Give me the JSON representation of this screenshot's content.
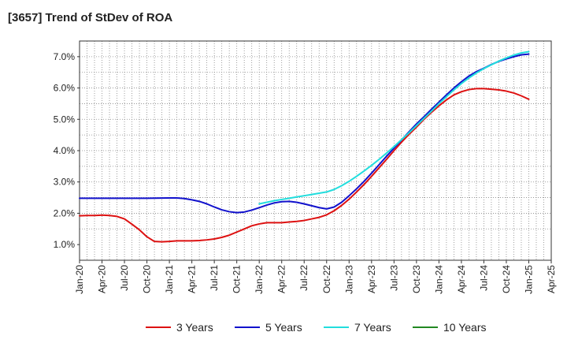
{
  "title": "[3657]  Trend of StDev of ROA",
  "chart_data": {
    "type": "line",
    "title": "[3657]  Trend of StDev of ROA",
    "xlabel": "",
    "ylabel": "",
    "x_tick_labels": [
      "Jan-20",
      "Apr-20",
      "Jul-20",
      "Oct-20",
      "Jan-21",
      "Apr-21",
      "Jul-21",
      "Oct-21",
      "Jan-22",
      "Apr-22",
      "Jul-22",
      "Oct-22",
      "Jan-23",
      "Apr-23",
      "Jul-23",
      "Oct-23",
      "Jan-24",
      "Apr-24",
      "Jul-24",
      "Oct-24",
      "Jan-25",
      "Apr-25"
    ],
    "y_tick_labels": [
      "1.0%",
      "2.0%",
      "3.0%",
      "4.0%",
      "5.0%",
      "6.0%",
      "7.0%"
    ],
    "y_ticks": [
      1.0,
      2.0,
      3.0,
      4.0,
      5.0,
      6.0,
      7.0
    ],
    "ylim": [
      0.5,
      7.5
    ],
    "grid": true,
    "legend_position": "bottom",
    "series": [
      {
        "name": "3 Years",
        "color": "#dd1111",
        "points": [
          [
            "Jan-20",
            1.92
          ],
          [
            "Feb-20",
            1.93
          ],
          [
            "Mar-20",
            1.93
          ],
          [
            "Apr-20",
            1.94
          ],
          [
            "May-20",
            1.93
          ],
          [
            "Jun-20",
            1.9
          ],
          [
            "Jul-20",
            1.82
          ],
          [
            "Aug-20",
            1.65
          ],
          [
            "Sep-20",
            1.47
          ],
          [
            "Oct-20",
            1.25
          ],
          [
            "Nov-20",
            1.1
          ],
          [
            "Dec-20",
            1.09
          ],
          [
            "Jan-21",
            1.1
          ],
          [
            "Feb-21",
            1.12
          ],
          [
            "Mar-21",
            1.12
          ],
          [
            "Apr-21",
            1.12
          ],
          [
            "May-21",
            1.13
          ],
          [
            "Jun-21",
            1.15
          ],
          [
            "Jul-21",
            1.18
          ],
          [
            "Aug-21",
            1.23
          ],
          [
            "Sep-21",
            1.3
          ],
          [
            "Oct-21",
            1.4
          ],
          [
            "Nov-21",
            1.5
          ],
          [
            "Dec-21",
            1.6
          ],
          [
            "Jan-22",
            1.66
          ],
          [
            "Feb-22",
            1.7
          ],
          [
            "Mar-22",
            1.7
          ],
          [
            "Apr-22",
            1.7
          ],
          [
            "May-22",
            1.72
          ],
          [
            "Jun-22",
            1.74
          ],
          [
            "Jul-22",
            1.77
          ],
          [
            "Aug-22",
            1.82
          ],
          [
            "Sep-22",
            1.87
          ],
          [
            "Oct-22",
            1.95
          ],
          [
            "Nov-22",
            2.08
          ],
          [
            "Dec-22",
            2.25
          ],
          [
            "Jan-23",
            2.45
          ],
          [
            "Feb-23",
            2.68
          ],
          [
            "Mar-23",
            2.92
          ],
          [
            "Apr-23",
            3.18
          ],
          [
            "May-23",
            3.45
          ],
          [
            "Jun-23",
            3.72
          ],
          [
            "Jul-23",
            4.0
          ],
          [
            "Aug-23",
            4.27
          ],
          [
            "Sep-23",
            4.52
          ],
          [
            "Oct-23",
            4.75
          ],
          [
            "Nov-23",
            5.0
          ],
          [
            "Dec-23",
            5.22
          ],
          [
            "Jan-24",
            5.43
          ],
          [
            "Feb-24",
            5.62
          ],
          [
            "Mar-24",
            5.78
          ],
          [
            "Apr-24",
            5.88
          ],
          [
            "May-24",
            5.95
          ],
          [
            "Jun-24",
            5.98
          ],
          [
            "Jul-24",
            5.98
          ],
          [
            "Aug-24",
            5.96
          ],
          [
            "Sep-24",
            5.94
          ],
          [
            "Oct-24",
            5.9
          ],
          [
            "Nov-24",
            5.84
          ],
          [
            "Dec-24",
            5.75
          ],
          [
            "Jan-25",
            5.64
          ]
        ]
      },
      {
        "name": "5 Years",
        "color": "#1111cc",
        "points": [
          [
            "Jan-20",
            2.48
          ],
          [
            "Apr-20",
            2.48
          ],
          [
            "Jul-20",
            2.48
          ],
          [
            "Oct-20",
            2.48
          ],
          [
            "Jan-21",
            2.49
          ],
          [
            "Feb-21",
            2.49
          ],
          [
            "Mar-21",
            2.47
          ],
          [
            "Apr-21",
            2.43
          ],
          [
            "May-21",
            2.38
          ],
          [
            "Jun-21",
            2.3
          ],
          [
            "Jul-21",
            2.2
          ],
          [
            "Aug-21",
            2.11
          ],
          [
            "Sep-21",
            2.05
          ],
          [
            "Oct-21",
            2.02
          ],
          [
            "Nov-21",
            2.04
          ],
          [
            "Dec-21",
            2.1
          ],
          [
            "Jan-22",
            2.18
          ],
          [
            "Feb-22",
            2.26
          ],
          [
            "Mar-22",
            2.33
          ],
          [
            "Apr-22",
            2.37
          ],
          [
            "May-22",
            2.38
          ],
          [
            "Jun-22",
            2.35
          ],
          [
            "Jul-22",
            2.3
          ],
          [
            "Aug-22",
            2.24
          ],
          [
            "Sep-22",
            2.18
          ],
          [
            "Oct-22",
            2.14
          ],
          [
            "Nov-22",
            2.2
          ],
          [
            "Dec-22",
            2.35
          ],
          [
            "Jan-23",
            2.56
          ],
          [
            "Feb-23",
            2.78
          ],
          [
            "Mar-23",
            3.02
          ],
          [
            "Apr-23",
            3.28
          ],
          [
            "May-23",
            3.55
          ],
          [
            "Jun-23",
            3.82
          ],
          [
            "Jul-23",
            4.08
          ],
          [
            "Aug-23",
            4.34
          ],
          [
            "Sep-23",
            4.6
          ],
          [
            "Oct-23",
            4.85
          ],
          [
            "Nov-23",
            5.08
          ],
          [
            "Dec-23",
            5.32
          ],
          [
            "Jan-24",
            5.55
          ],
          [
            "Feb-24",
            5.78
          ],
          [
            "Mar-24",
            6.0
          ],
          [
            "Apr-24",
            6.2
          ],
          [
            "May-24",
            6.38
          ],
          [
            "Jun-24",
            6.52
          ],
          [
            "Jul-24",
            6.63
          ],
          [
            "Aug-24",
            6.75
          ],
          [
            "Sep-24",
            6.85
          ],
          [
            "Oct-24",
            6.93
          ],
          [
            "Nov-24",
            7.0
          ],
          [
            "Dec-24",
            7.06
          ],
          [
            "Jan-25",
            7.08
          ]
        ]
      },
      {
        "name": "7 Years",
        "color": "#22dddd",
        "points": [
          [
            "Jan-22",
            2.3
          ],
          [
            "Feb-22",
            2.35
          ],
          [
            "Mar-22",
            2.4
          ],
          [
            "Apr-22",
            2.44
          ],
          [
            "May-22",
            2.48
          ],
          [
            "Jun-22",
            2.52
          ],
          [
            "Jul-22",
            2.56
          ],
          [
            "Aug-22",
            2.6
          ],
          [
            "Sep-22",
            2.64
          ],
          [
            "Oct-22",
            2.68
          ],
          [
            "Nov-22",
            2.76
          ],
          [
            "Dec-22",
            2.88
          ],
          [
            "Jan-23",
            3.02
          ],
          [
            "Feb-23",
            3.18
          ],
          [
            "Mar-23",
            3.35
          ],
          [
            "Apr-23",
            3.53
          ],
          [
            "May-23",
            3.72
          ],
          [
            "Jun-23",
            3.92
          ],
          [
            "Jul-23",
            4.13
          ],
          [
            "Aug-23",
            4.35
          ],
          [
            "Sep-23",
            4.57
          ],
          [
            "Oct-23",
            4.8
          ],
          [
            "Nov-23",
            5.03
          ],
          [
            "Dec-23",
            5.26
          ],
          [
            "Jan-24",
            5.5
          ],
          [
            "Feb-24",
            5.72
          ],
          [
            "Mar-24",
            5.94
          ],
          [
            "Apr-24",
            6.14
          ],
          [
            "May-24",
            6.32
          ],
          [
            "Jun-24",
            6.48
          ],
          [
            "Jul-24",
            6.62
          ],
          [
            "Aug-24",
            6.74
          ],
          [
            "Sep-24",
            6.86
          ],
          [
            "Oct-24",
            6.96
          ],
          [
            "Nov-24",
            7.05
          ],
          [
            "Dec-24",
            7.12
          ],
          [
            "Jan-25",
            7.16
          ]
        ]
      },
      {
        "name": "10 Years",
        "color": "#228822",
        "points": []
      }
    ]
  }
}
